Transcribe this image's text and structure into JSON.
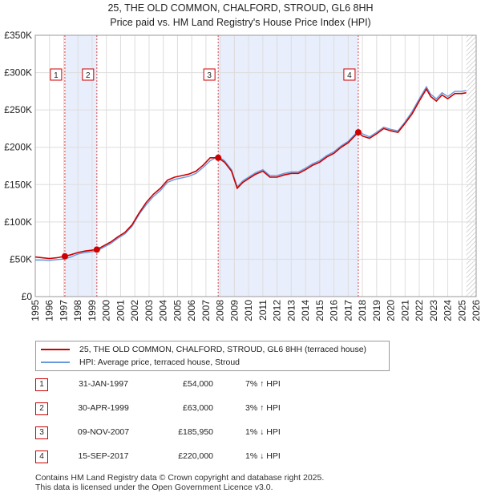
{
  "chart_data": {
    "type": "line",
    "title": "25, THE OLD COMMON, CHALFORD, STROUD, GL6 8HH",
    "subtitle": "Price paid vs. HM Land Registry's House Price Index (HPI)",
    "xlim": [
      1995,
      2026
    ],
    "ylim": [
      0,
      350000
    ],
    "xticks": [
      "1995",
      "1996",
      "1997",
      "1998",
      "1999",
      "2000",
      "2001",
      "2002",
      "2003",
      "2004",
      "2005",
      "2006",
      "2007",
      "2008",
      "2009",
      "2010",
      "2011",
      "2012",
      "2013",
      "2014",
      "2015",
      "2016",
      "2017",
      "2018",
      "2019",
      "2020",
      "2021",
      "2022",
      "2023",
      "2024",
      "2025",
      "2026"
    ],
    "yticks": [
      {
        "value": 0,
        "label": "£0"
      },
      {
        "value": 50000,
        "label": "£50K"
      },
      {
        "value": 100000,
        "label": "£100K"
      },
      {
        "value": 150000,
        "label": "£150K"
      },
      {
        "value": 200000,
        "label": "£200K"
      },
      {
        "value": 250000,
        "label": "£250K"
      },
      {
        "value": 300000,
        "label": "£300K"
      },
      {
        "value": 350000,
        "label": "£350K"
      }
    ],
    "grid": true,
    "shaded_periods": [
      [
        1997.08,
        1999.33
      ],
      [
        2007.86,
        2017.71
      ]
    ],
    "future_hatch_from": 2025.3,
    "series": [
      {
        "name": "25, THE OLD COMMON, CHALFORD, STROUD, GL6 8HH (terraced house)",
        "color": "#cc0000",
        "x": [
          1995.0,
          1995.5,
          1996.0,
          1996.5,
          1997.08,
          1997.5,
          1998.0,
          1998.5,
          1999.33,
          1999.8,
          2000.3,
          2000.8,
          2001.3,
          2001.8,
          2002.3,
          2002.8,
          2003.3,
          2003.8,
          2004.3,
          2004.8,
          2005.3,
          2005.8,
          2006.3,
          2006.8,
          2007.3,
          2007.86,
          2008.3,
          2008.8,
          2009.2,
          2009.6,
          2010.0,
          2010.5,
          2011.0,
          2011.5,
          2012.0,
          2012.5,
          2013.0,
          2013.5,
          2014.0,
          2014.5,
          2015.0,
          2015.5,
          2016.0,
          2016.5,
          2017.0,
          2017.71,
          2018.0,
          2018.5,
          2019.0,
          2019.5,
          2020.0,
          2020.5,
          2021.0,
          2021.5,
          2022.0,
          2022.5,
          2022.8,
          2023.2,
          2023.6,
          2024.0,
          2024.5,
          2025.0,
          2025.3
        ],
        "values": [
          53000,
          52000,
          51000,
          52000,
          54000,
          56000,
          59000,
          61000,
          63000,
          68000,
          73000,
          80000,
          86000,
          96000,
          112000,
          126000,
          137000,
          145000,
          156000,
          160000,
          162000,
          164000,
          168000,
          176000,
          186000,
          185950,
          180000,
          168000,
          145000,
          153000,
          158000,
          164000,
          168000,
          160000,
          160000,
          163000,
          165000,
          165000,
          170000,
          176000,
          180000,
          187000,
          192000,
          200000,
          206000,
          220000,
          215000,
          212000,
          218000,
          225000,
          222000,
          220000,
          232000,
          245000,
          262000,
          278000,
          268000,
          262000,
          270000,
          265000,
          272000,
          272000,
          273000
        ]
      },
      {
        "name": "HPI: Average price, terraced house, Stroud",
        "color": "#6699dd",
        "x": [
          1995.0,
          1995.5,
          1996.0,
          1996.5,
          1997.08,
          1997.5,
          1998.0,
          1998.5,
          1999.33,
          1999.8,
          2000.3,
          2000.8,
          2001.3,
          2001.8,
          2002.3,
          2002.8,
          2003.3,
          2003.8,
          2004.3,
          2004.8,
          2005.3,
          2005.8,
          2006.3,
          2006.8,
          2007.3,
          2007.86,
          2008.3,
          2008.8,
          2009.2,
          2009.6,
          2010.0,
          2010.5,
          2011.0,
          2011.5,
          2012.0,
          2012.5,
          2013.0,
          2013.5,
          2014.0,
          2014.5,
          2015.0,
          2015.5,
          2016.0,
          2016.5,
          2017.0,
          2017.71,
          2018.0,
          2018.5,
          2019.0,
          2019.5,
          2020.0,
          2020.5,
          2021.0,
          2021.5,
          2022.0,
          2022.5,
          2022.8,
          2023.2,
          2023.6,
          2024.0,
          2024.5,
          2025.0,
          2025.3
        ],
        "values": [
          49000,
          49000,
          48500,
          49500,
          50500,
          53000,
          57000,
          59000,
          61000,
          66000,
          71000,
          78000,
          84000,
          94000,
          110000,
          123000,
          134000,
          142000,
          153000,
          157000,
          159000,
          161000,
          165000,
          173000,
          182000,
          188000,
          182000,
          170000,
          147000,
          155000,
          160000,
          166000,
          170000,
          162000,
          162000,
          165000,
          167000,
          167000,
          172000,
          178000,
          182000,
          189000,
          194000,
          202000,
          208000,
          222000,
          218000,
          214000,
          220000,
          227000,
          224000,
          222000,
          234000,
          248000,
          265000,
          281000,
          271000,
          265000,
          273000,
          268000,
          275000,
          275000,
          276000
        ]
      }
    ],
    "sales": [
      {
        "num": "1",
        "x": 1997.08,
        "value": 54000
      },
      {
        "num": "2",
        "x": 1999.33,
        "value": 63000
      },
      {
        "num": "3",
        "x": 2007.86,
        "value": 185950
      },
      {
        "num": "4",
        "x": 2017.71,
        "value": 220000
      }
    ]
  },
  "legend": {
    "items": [
      {
        "label": "25, THE OLD COMMON, CHALFORD, STROUD, GL6 8HH (terraced house)",
        "color": "#cc0000"
      },
      {
        "label": "HPI: Average price, terraced house, Stroud",
        "color": "#6699dd"
      }
    ]
  },
  "sales_table": [
    {
      "num": "1",
      "date": "31-JAN-1997",
      "price": "£54,000",
      "hpi": "7% ↑ HPI"
    },
    {
      "num": "2",
      "date": "30-APR-1999",
      "price": "£63,000",
      "hpi": "3% ↑ HPI"
    },
    {
      "num": "3",
      "date": "09-NOV-2007",
      "price": "£185,950",
      "hpi": "1% ↓ HPI"
    },
    {
      "num": "4",
      "date": "15-SEP-2017",
      "price": "£220,000",
      "hpi": "1% ↓ HPI"
    }
  ],
  "footer": {
    "line1": "Contains HM Land Registry data © Crown copyright and database right 2025.",
    "line2": "This data is licensed under the Open Government Licence v3.0."
  }
}
